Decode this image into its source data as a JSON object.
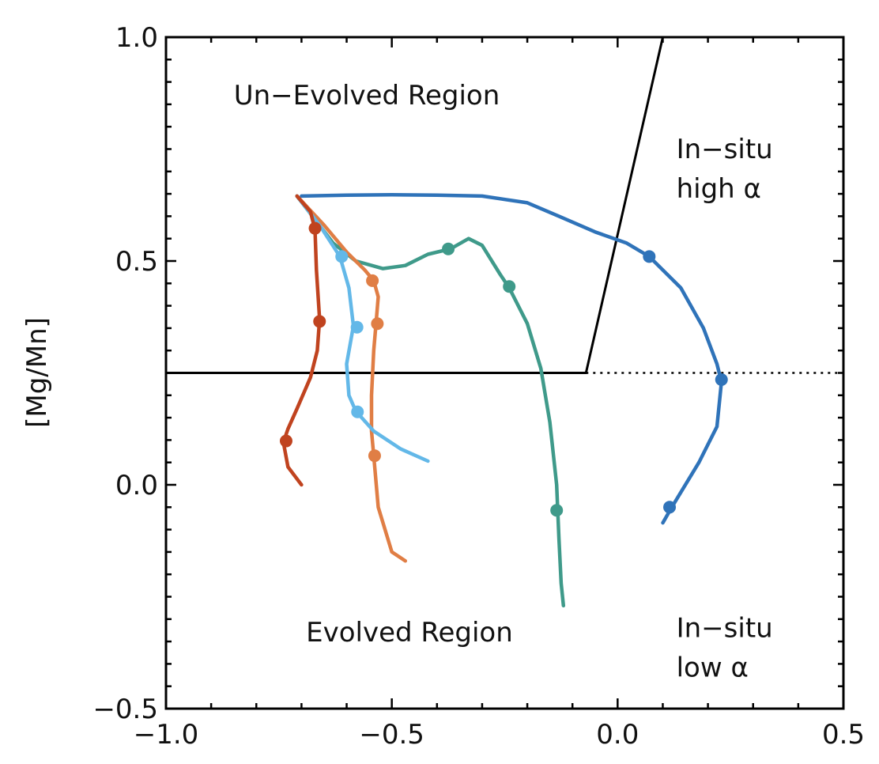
{
  "chart_data": {
    "type": "line",
    "title": "",
    "xlabel": "",
    "ylabel": "[Mg/Mn]",
    "xlim": [
      -1.0,
      0.5
    ],
    "ylim": [
      -0.5,
      1.0
    ],
    "grid": false,
    "x_ticks": [
      "−1.0",
      "−0.5",
      "0.0",
      "0.5"
    ],
    "y_ticks": [
      "−0.5",
      "0.0",
      "0.5",
      "1.0"
    ],
    "boundaries": [
      {
        "style": "solid",
        "points": [
          [
            -1.0,
            0.25
          ],
          [
            -0.07,
            0.25
          ],
          [
            0.1,
            1.0
          ]
        ]
      },
      {
        "style": "dotted",
        "points": [
          [
            -0.07,
            0.25
          ],
          [
            0.5,
            0.25
          ]
        ]
      }
    ],
    "annotations": [
      {
        "id": "unevolved",
        "lines": [
          "Un−Evolved Region"
        ],
        "x": -0.85,
        "y": 0.85
      },
      {
        "id": "insitu-high",
        "lines": [
          "In−situ",
          "high α"
        ],
        "x": 0.13,
        "y": 0.73
      },
      {
        "id": "evolved",
        "lines": [
          "Evolved Region"
        ],
        "x": -0.69,
        "y": -0.35
      },
      {
        "id": "insitu-low",
        "lines": [
          "In−situ",
          "low α"
        ],
        "x": 0.13,
        "y": -0.34
      }
    ],
    "series": [
      {
        "color": "#2f73b9",
        "points": [
          [
            -0.7,
            0.645
          ],
          [
            -0.6,
            0.647
          ],
          [
            -0.5,
            0.648
          ],
          [
            -0.4,
            0.647
          ],
          [
            -0.3,
            0.645
          ],
          [
            -0.2,
            0.63
          ],
          [
            -0.13,
            0.6
          ],
          [
            -0.05,
            0.565
          ],
          [
            0.02,
            0.54
          ],
          [
            0.07,
            0.51
          ],
          [
            0.14,
            0.44
          ],
          [
            0.19,
            0.35
          ],
          [
            0.22,
            0.27
          ],
          [
            0.23,
            0.23
          ],
          [
            0.22,
            0.13
          ],
          [
            0.18,
            0.05
          ],
          [
            0.12,
            -0.05
          ],
          [
            0.1,
            -0.085
          ]
        ],
        "markers": [
          [
            0.07,
            0.51
          ],
          [
            0.23,
            0.235
          ],
          [
            0.115,
            -0.05
          ]
        ]
      },
      {
        "color": "#3f9a8a",
        "points": [
          [
            -0.71,
            0.645
          ],
          [
            -0.63,
            0.54
          ],
          [
            -0.58,
            0.5
          ],
          [
            -0.52,
            0.483
          ],
          [
            -0.47,
            0.49
          ],
          [
            -0.42,
            0.515
          ],
          [
            -0.37,
            0.527
          ],
          [
            -0.33,
            0.55
          ],
          [
            -0.3,
            0.535
          ],
          [
            -0.26,
            0.47
          ],
          [
            -0.24,
            0.44
          ],
          [
            -0.2,
            0.36
          ],
          [
            -0.17,
            0.26
          ],
          [
            -0.15,
            0.14
          ],
          [
            -0.135,
            0.0
          ],
          [
            -0.13,
            -0.12
          ],
          [
            -0.125,
            -0.22
          ],
          [
            -0.12,
            -0.27
          ]
        ],
        "markers": [
          [
            -0.375,
            0.527
          ],
          [
            -0.24,
            0.443
          ],
          [
            -0.135,
            -0.057
          ]
        ]
      },
      {
        "color": "#e07e45",
        "points": [
          [
            -0.71,
            0.645
          ],
          [
            -0.65,
            0.58
          ],
          [
            -0.6,
            0.52
          ],
          [
            -0.56,
            0.48
          ],
          [
            -0.54,
            0.456
          ],
          [
            -0.53,
            0.42
          ],
          [
            -0.535,
            0.36
          ],
          [
            -0.54,
            0.3
          ],
          [
            -0.545,
            0.2
          ],
          [
            -0.545,
            0.12
          ],
          [
            -0.54,
            0.065
          ],
          [
            -0.53,
            -0.05
          ],
          [
            -0.5,
            -0.15
          ],
          [
            -0.47,
            -0.17
          ]
        ],
        "markers": [
          [
            -0.543,
            0.456
          ],
          [
            -0.532,
            0.36
          ],
          [
            -0.538,
            0.065
          ]
        ]
      },
      {
        "color": "#63b8e8",
        "points": [
          [
            -0.71,
            0.645
          ],
          [
            -0.66,
            0.58
          ],
          [
            -0.615,
            0.51
          ],
          [
            -0.595,
            0.44
          ],
          [
            -0.585,
            0.355
          ],
          [
            -0.6,
            0.27
          ],
          [
            -0.595,
            0.2
          ],
          [
            -0.58,
            0.165
          ],
          [
            -0.54,
            0.12
          ],
          [
            -0.48,
            0.08
          ],
          [
            -0.42,
            0.053
          ]
        ],
        "markers": [
          [
            -0.611,
            0.51
          ],
          [
            -0.577,
            0.352
          ],
          [
            -0.576,
            0.163
          ]
        ]
      },
      {
        "color": "#c0431f",
        "points": [
          [
            -0.71,
            0.645
          ],
          [
            -0.68,
            0.61
          ],
          [
            -0.67,
            0.57
          ],
          [
            -0.667,
            0.48
          ],
          [
            -0.66,
            0.37
          ],
          [
            -0.665,
            0.3
          ],
          [
            -0.68,
            0.24
          ],
          [
            -0.71,
            0.17
          ],
          [
            -0.73,
            0.125
          ],
          [
            -0.74,
            0.095
          ],
          [
            -0.73,
            0.04
          ],
          [
            -0.7,
            0.0
          ]
        ],
        "markers": [
          [
            -0.67,
            0.573
          ],
          [
            -0.66,
            0.365
          ],
          [
            -0.734,
            0.098
          ]
        ]
      }
    ]
  }
}
